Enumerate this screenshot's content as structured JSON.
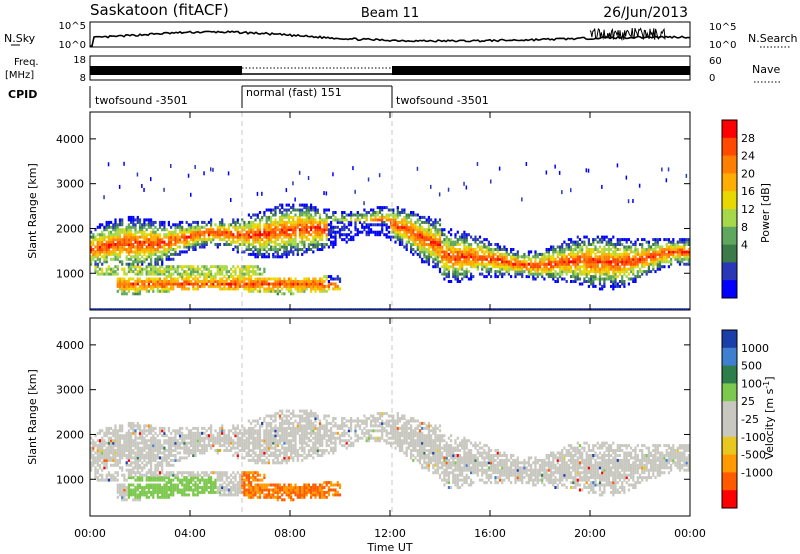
{
  "header": {
    "station": "Saskatoon (fitACF)",
    "beam": "Beam 11",
    "date": "26/Jun/2013"
  },
  "chart_data": [
    {
      "type": "line",
      "panel": "noise",
      "left_label": "N.Sky",
      "right_label": "N.Search",
      "y_ticks_left": [
        "10^5",
        "10^0"
      ],
      "y_ticks_right": [
        "10^5",
        "10^0"
      ]
    },
    {
      "type": "line",
      "panel": "frequency-nave",
      "left_label_line1": "Freq.",
      "left_label_line2": "[MHz]",
      "right_label": "Nave",
      "y_ticks_left": [
        "18",
        "8"
      ],
      "y_ticks_right": [
        "60",
        "0"
      ]
    },
    {
      "type": "table",
      "panel": "cpid",
      "label": "CPID",
      "segments": [
        {
          "name": "twofsound -3501",
          "start_hour": 0,
          "end_hour": 6
        },
        {
          "name": "normal (fast) 151",
          "start_hour": 6,
          "end_hour": 12
        },
        {
          "name": "twofsound -3501",
          "start_hour": 12,
          "end_hour": 24
        }
      ]
    },
    {
      "type": "heatmap",
      "panel": "power",
      "ylabel": "Slant Range [km]",
      "yticks": [
        1000,
        2000,
        3000,
        4000
      ],
      "ylim": [
        180,
        4600
      ],
      "xlim": [
        0,
        24
      ],
      "colorbar_label": "Power [dB]",
      "colorbar_ticks": [
        "28",
        "24",
        "20",
        "16",
        "12",
        "8",
        "4"
      ],
      "colorbar_colors": [
        "#ff0000",
        "#ff4a00",
        "#ff8000",
        "#ffad00",
        "#e8d800",
        "#a6d84a",
        "#5fa65f",
        "#3c7a4a",
        "#2838b8",
        "#0000ff"
      ]
    },
    {
      "type": "heatmap",
      "panel": "velocity",
      "ylabel": "Slant Range [km]",
      "yticks": [
        1000,
        2000,
        3000,
        4000
      ],
      "ylim": [
        180,
        4600
      ],
      "xlim": [
        0,
        24
      ],
      "xticks": [
        "00:00",
        "04:00",
        "08:00",
        "12:00",
        "16:00",
        "20:00",
        "00:00"
      ],
      "xlabel": "Time UT",
      "colorbar_label": "Velocity [m s",
      "colorbar_label_sup": "-1",
      "colorbar_label_end": "]",
      "colorbar_ticks": [
        "1000",
        "500",
        "100",
        "25",
        "-25",
        "-100",
        "-500",
        "-1000"
      ],
      "colorbar_colors": [
        "#1a3fa8",
        "#3f7fcf",
        "#2e7d4d",
        "#7dc84e",
        "#c8c8c0",
        "#c8c8c0",
        "#e8c81e",
        "#ff9a00",
        "#ff5a00",
        "#ff0000"
      ]
    }
  ]
}
